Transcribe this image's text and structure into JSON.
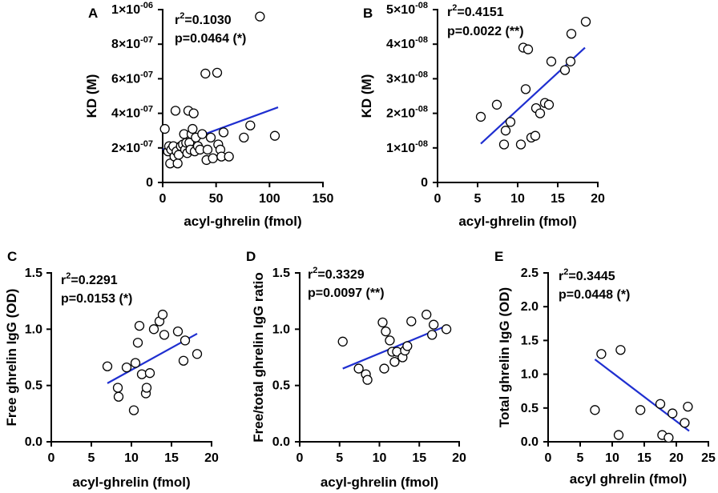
{
  "figure": {
    "colors": {
      "fit_line": "#1f2fd0",
      "axis": "#000000",
      "marker_fill": "#ffffff",
      "marker_stroke": "#000000"
    },
    "chart_data": [
      {
        "panel": "A",
        "type": "scatter",
        "title": "",
        "xlabel": "acyl-ghrelin (fmol)",
        "ylabel": "KD (M)",
        "xlim": [
          0,
          150
        ],
        "ylim": [
          0,
          1e-06
        ],
        "xticks": [
          0,
          50,
          100,
          150
        ],
        "xtick_labels": [
          "0",
          "50",
          "100",
          "150"
        ],
        "yticks": [
          0,
          2e-07,
          4e-07,
          6e-07,
          8e-07,
          1e-06
        ],
        "ytick_labels": [
          {
            "mant": "0",
            "exp": ""
          },
          {
            "mant": "2×10",
            "exp": "-07"
          },
          {
            "mant": "4×10",
            "exp": "-07"
          },
          {
            "mant": "6×10",
            "exp": "-07"
          },
          {
            "mant": "8×10",
            "exp": "-07"
          },
          {
            "mant": "1×10",
            "exp": "-06"
          }
        ],
        "stats": {
          "r2_prefix": "r",
          "r2_sup": "2",
          "r2_value": "=0.1030",
          "p_text": "p=0.0464 (*)"
        },
        "fit": {
          "x": [
            0,
            108
          ],
          "y": [
            1.9e-07,
            4.35e-07
          ]
        },
        "points": [
          [
            2,
            3.1e-07
          ],
          [
            5,
            1.8e-07
          ],
          [
            6,
            2.1e-07
          ],
          [
            7,
            1.1e-07
          ],
          [
            8,
            1.9e-07
          ],
          [
            10,
            2.1e-07
          ],
          [
            11,
            1.5e-07
          ],
          [
            12,
            4.15e-07
          ],
          [
            13,
            1.8e-07
          ],
          [
            14,
            1.1e-07
          ],
          [
            15,
            1.6e-07
          ],
          [
            17,
            2.1e-07
          ],
          [
            19,
            2.2e-07
          ],
          [
            20,
            2.8e-07
          ],
          [
            21,
            1.9e-07
          ],
          [
            22,
            2.3e-07
          ],
          [
            23,
            1.7e-07
          ],
          [
            24,
            4.15e-07
          ],
          [
            25,
            2.3e-07
          ],
          [
            26,
            1.9e-07
          ],
          [
            27,
            2.8e-07
          ],
          [
            28,
            3.1e-07
          ],
          [
            29,
            4e-07
          ],
          [
            30,
            1.8e-07
          ],
          [
            31,
            2.6e-07
          ],
          [
            33,
            2.1e-07
          ],
          [
            35,
            1.9e-07
          ],
          [
            37,
            2.8e-07
          ],
          [
            40,
            6.3e-07
          ],
          [
            41,
            1.3e-07
          ],
          [
            42,
            1.9e-07
          ],
          [
            45,
            2.6e-07
          ],
          [
            47,
            1.4e-07
          ],
          [
            51,
            6.35e-07
          ],
          [
            52,
            2.2e-07
          ],
          [
            54,
            1.9e-07
          ],
          [
            55,
            1.5e-07
          ],
          [
            57,
            2.9e-07
          ],
          [
            62,
            1.5e-07
          ],
          [
            76,
            2.6e-07
          ],
          [
            82,
            3.3e-07
          ],
          [
            91,
            9.6e-07
          ],
          [
            105,
            2.7e-07
          ]
        ]
      },
      {
        "panel": "B",
        "type": "scatter",
        "title": "",
        "xlabel": "acyl-ghrelin (fmol)",
        "ylabel": "KD (M)",
        "xlim": [
          0,
          20
        ],
        "ylim": [
          0,
          5e-08
        ],
        "xticks": [
          0,
          5,
          10,
          15,
          20
        ],
        "xtick_labels": [
          "0",
          "5",
          "10",
          "15",
          "20"
        ],
        "yticks": [
          0,
          1e-08,
          2e-08,
          3e-08,
          4e-08,
          5e-08
        ],
        "ytick_labels": [
          {
            "mant": "0",
            "exp": ""
          },
          {
            "mant": "1×10",
            "exp": "-08"
          },
          {
            "mant": "2×10",
            "exp": "-08"
          },
          {
            "mant": "3×10",
            "exp": "-08"
          },
          {
            "mant": "4×10",
            "exp": "-08"
          },
          {
            "mant": "5×10",
            "exp": "-08"
          }
        ],
        "stats": {
          "r2_prefix": "r",
          "r2_sup": "2",
          "r2_value": "=0.4151",
          "p_text": "p=0.0022 (**)"
        },
        "fit": {
          "x": [
            5.4,
            18.4
          ],
          "y": [
            1.12e-08,
            3.9e-08
          ]
        },
        "points": [
          [
            5.4,
            1.9e-08
          ],
          [
            7.4,
            2.25e-08
          ],
          [
            8.3,
            1.1e-08
          ],
          [
            8.5,
            1.5e-08
          ],
          [
            9.1,
            1.75e-08
          ],
          [
            10.4,
            1.1e-08
          ],
          [
            10.7,
            3.9e-08
          ],
          [
            11.0,
            2.7e-08
          ],
          [
            11.3,
            3.85e-08
          ],
          [
            11.7,
            1.3e-08
          ],
          [
            12.2,
            1.35e-08
          ],
          [
            12.3,
            2.15e-08
          ],
          [
            12.8,
            2e-08
          ],
          [
            13.4,
            2.3e-08
          ],
          [
            13.9,
            2.25e-08
          ],
          [
            14.2,
            3.5e-08
          ],
          [
            15.9,
            3.25e-08
          ],
          [
            16.6,
            3.5e-08
          ],
          [
            16.7,
            4.3e-08
          ],
          [
            18.5,
            4.65e-08
          ]
        ]
      },
      {
        "panel": "C",
        "type": "scatter",
        "title": "",
        "xlabel": "acyl-ghrelin (fmol)",
        "ylabel": "Free ghrelin IgG (OD)",
        "xlim": [
          0,
          20
        ],
        "ylim": [
          0,
          1.5
        ],
        "xticks": [
          0,
          5,
          10,
          15,
          20
        ],
        "xtick_labels": [
          "0",
          "5",
          "10",
          "15",
          "20"
        ],
        "yticks": [
          0,
          0.5,
          1.0,
          1.5
        ],
        "ytick_labels": [
          {
            "mant": "0.0",
            "exp": ""
          },
          {
            "mant": "0.5",
            "exp": ""
          },
          {
            "mant": "1.0",
            "exp": ""
          },
          {
            "mant": "1.5",
            "exp": ""
          }
        ],
        "stats": {
          "r2_prefix": "r",
          "r2_sup": "2",
          "r2_value": "=0.2291",
          "p_text": "p=0.0153 (*)"
        },
        "fit": {
          "x": [
            7.0,
            18.2
          ],
          "y": [
            0.52,
            0.96
          ]
        },
        "points": [
          [
            7.0,
            0.67
          ],
          [
            8.3,
            0.48
          ],
          [
            8.4,
            0.4
          ],
          [
            9.4,
            0.66
          ],
          [
            10.3,
            0.28
          ],
          [
            10.5,
            0.7
          ],
          [
            10.8,
            0.88
          ],
          [
            11.0,
            1.03
          ],
          [
            11.3,
            0.6
          ],
          [
            11.8,
            0.43
          ],
          [
            11.9,
            0.48
          ],
          [
            12.3,
            0.61
          ],
          [
            12.8,
            1.0
          ],
          [
            13.5,
            1.07
          ],
          [
            13.9,
            1.13
          ],
          [
            14.1,
            0.95
          ],
          [
            15.8,
            0.98
          ],
          [
            16.5,
            0.72
          ],
          [
            16.7,
            0.9
          ],
          [
            18.2,
            0.78
          ]
        ]
      },
      {
        "panel": "D",
        "type": "scatter",
        "title": "",
        "xlabel": "acyl-ghrelin (fmol)",
        "ylabel": "Free/total ghrelin IgG ratio",
        "xlim": [
          0,
          20
        ],
        "ylim": [
          0,
          1.5
        ],
        "xticks": [
          0,
          5,
          10,
          15,
          20
        ],
        "xtick_labels": [
          "0",
          "5",
          "10",
          "15",
          "20"
        ],
        "yticks": [
          0,
          0.5,
          1.0,
          1.5
        ],
        "ytick_labels": [
          {
            "mant": "0.0",
            "exp": ""
          },
          {
            "mant": "0.5",
            "exp": ""
          },
          {
            "mant": "1.0",
            "exp": ""
          },
          {
            "mant": "1.5",
            "exp": ""
          }
        ],
        "stats": {
          "r2_prefix": "r",
          "r2_sup": "2",
          "r2_value": "=0.3329",
          "p_text": "p=0.0097 (**)"
        },
        "fit": {
          "x": [
            5.4,
            18.4
          ],
          "y": [
            0.65,
            1.03
          ]
        },
        "points": [
          [
            5.4,
            0.89
          ],
          [
            7.4,
            0.65
          ],
          [
            8.3,
            0.6
          ],
          [
            8.5,
            0.55
          ],
          [
            10.4,
            1.06
          ],
          [
            10.6,
            0.65
          ],
          [
            10.8,
            0.98
          ],
          [
            11.3,
            0.9
          ],
          [
            11.6,
            0.8
          ],
          [
            11.9,
            0.71
          ],
          [
            12.2,
            0.8
          ],
          [
            12.9,
            0.75
          ],
          [
            13.2,
            0.81
          ],
          [
            13.5,
            0.85
          ],
          [
            14.0,
            1.07
          ],
          [
            15.9,
            1.13
          ],
          [
            16.6,
            0.95
          ],
          [
            16.8,
            1.04
          ],
          [
            18.4,
            1.0
          ]
        ]
      },
      {
        "panel": "E",
        "type": "scatter",
        "title": "",
        "xlabel": "acyl ghrelin (fmol)",
        "ylabel": "Total ghrelin IgG (OD)",
        "xlim": [
          0,
          25
        ],
        "ylim": [
          0,
          2.5
        ],
        "xticks": [
          0,
          5,
          10,
          15,
          20,
          25
        ],
        "xtick_labels": [
          "0",
          "5",
          "10",
          "15",
          "20",
          "25"
        ],
        "yticks": [
          0,
          0.5,
          1.0,
          1.5,
          2.0,
          2.5
        ],
        "ytick_labels": [
          {
            "mant": "0.0",
            "exp": ""
          },
          {
            "mant": "0.5",
            "exp": ""
          },
          {
            "mant": "1.0",
            "exp": ""
          },
          {
            "mant": "1.5",
            "exp": ""
          },
          {
            "mant": "2.0",
            "exp": ""
          },
          {
            "mant": "2.5",
            "exp": ""
          }
        ],
        "stats": {
          "r2_prefix": "r",
          "r2_sup": "2",
          "r2_value": "=0.3445",
          "p_text": "p=0.0448 (*)"
        },
        "fit": {
          "x": [
            7.3,
            22.0
          ],
          "y": [
            1.22,
            0.16
          ]
        },
        "points": [
          [
            7.3,
            0.47
          ],
          [
            8.3,
            1.3
          ],
          [
            11.0,
            0.1
          ],
          [
            11.3,
            1.36
          ],
          [
            14.4,
            0.47
          ],
          [
            17.5,
            0.56
          ],
          [
            17.8,
            0.1
          ],
          [
            18.8,
            0.06
          ],
          [
            19.4,
            0.42
          ],
          [
            21.3,
            0.28
          ],
          [
            21.8,
            0.52
          ]
        ]
      }
    ]
  }
}
